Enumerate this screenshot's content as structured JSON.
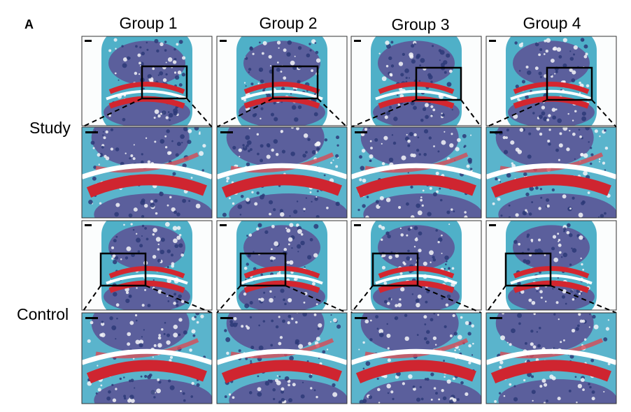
{
  "panel_label": "A",
  "columns": [
    "Group 1",
    "Group 2",
    "Group 3",
    "Group 4"
  ],
  "rows": [
    "Study",
    "Control"
  ]
}
